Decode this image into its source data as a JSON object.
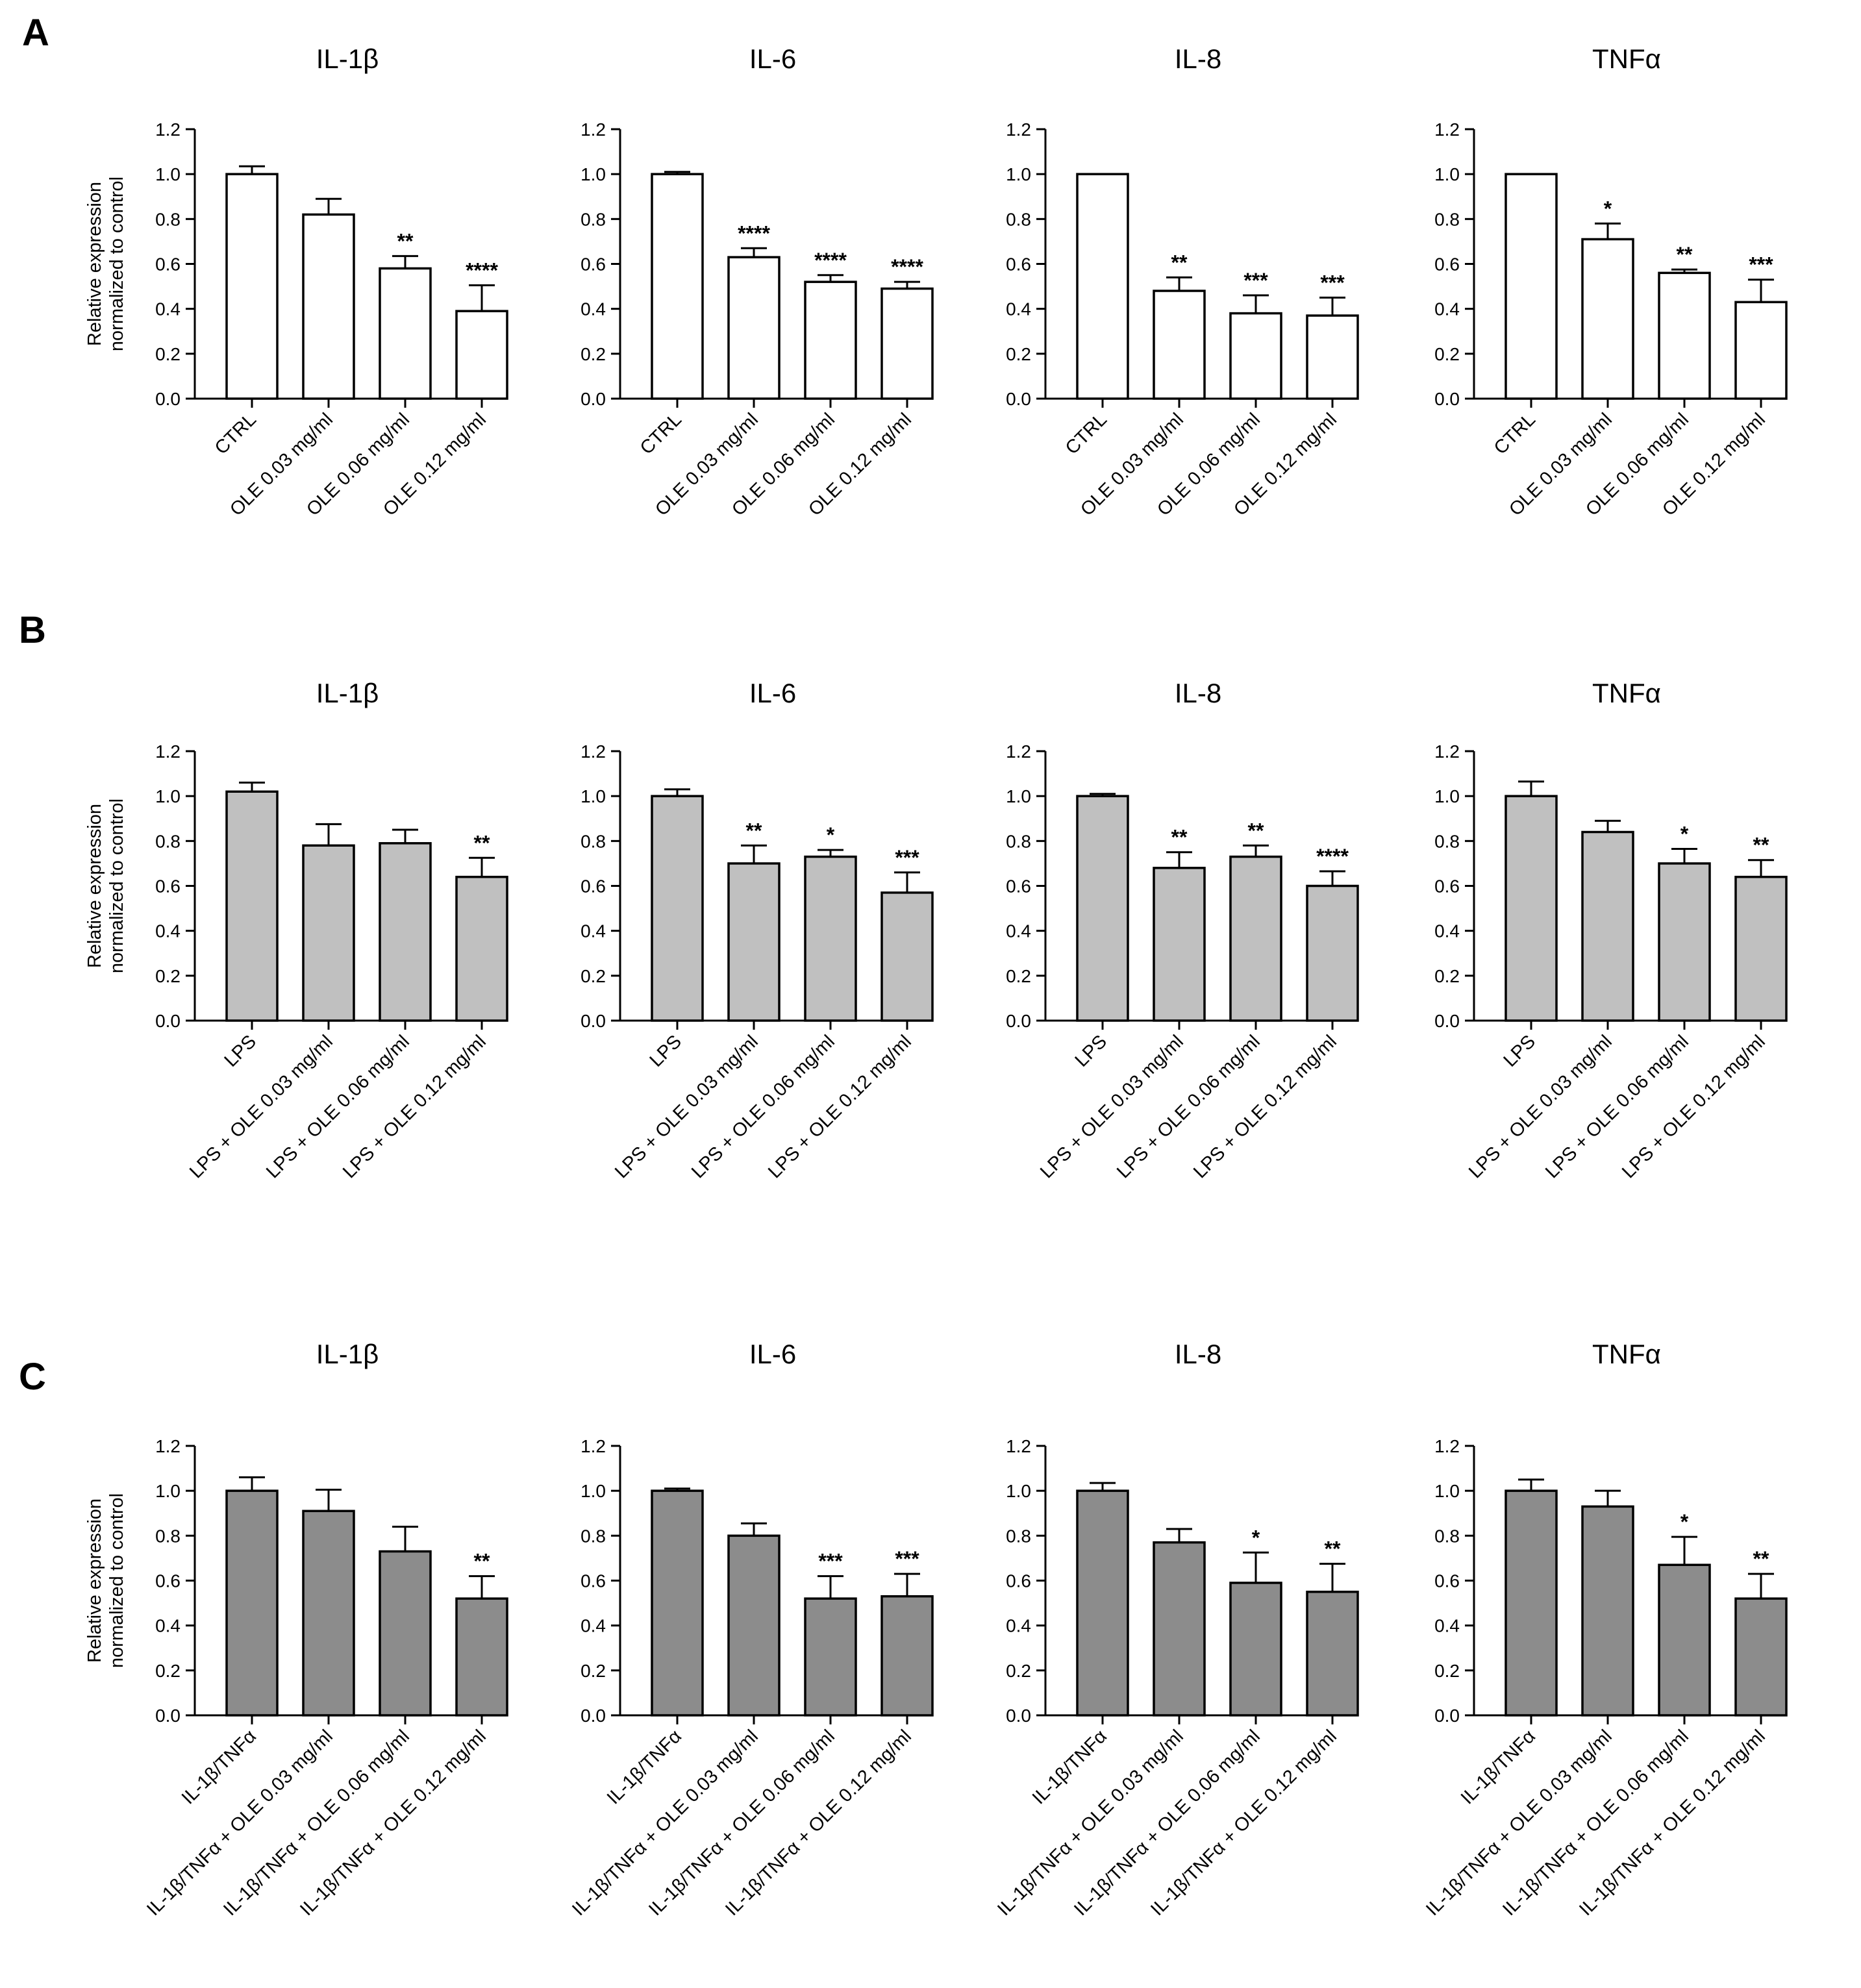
{
  "figure": {
    "y_axis_label_lines": [
      "Relative expression",
      "normalized to control"
    ],
    "styles": {
      "A": {
        "fill": "#ffffff",
        "stroke": "#000000"
      },
      "B": {
        "fill": "#c0c0c0",
        "stroke": "#000000"
      },
      "C": {
        "fill": "#8c8c8c",
        "stroke": "#000000"
      }
    }
  },
  "chart_data": [
    {
      "panel": "A",
      "type": "bar",
      "title": "IL-1β",
      "categories": [
        "CTRL",
        "OLE 0.03 mg/ml",
        "OLE 0.06 mg/ml",
        "OLE 0.12 mg/ml"
      ],
      "values": [
        1.0,
        0.82,
        0.58,
        0.39
      ],
      "errors": [
        0.035,
        0.07,
        0.055,
        0.115
      ],
      "significance": [
        "",
        "",
        "**",
        "****"
      ],
      "ylabel": "Relative expression normalized to control",
      "ylim": [
        0,
        1.2
      ],
      "yticks": [
        "0.0",
        "0.2",
        "0.4",
        "0.6",
        "0.8",
        "1.0",
        "1.2"
      ]
    },
    {
      "panel": "A",
      "type": "bar",
      "title": "IL-6",
      "categories": [
        "CTRL",
        "OLE 0.03 mg/ml",
        "OLE 0.06 mg/ml",
        "OLE 0.12 mg/ml"
      ],
      "values": [
        1.0,
        0.63,
        0.52,
        0.49
      ],
      "errors": [
        0.01,
        0.04,
        0.03,
        0.03
      ],
      "significance": [
        "",
        "****",
        "****",
        "****"
      ],
      "ylabel": "",
      "ylim": [
        0,
        1.2
      ],
      "yticks": [
        "0.0",
        "0.2",
        "0.4",
        "0.6",
        "0.8",
        "1.0",
        "1.2"
      ]
    },
    {
      "panel": "A",
      "type": "bar",
      "title": "IL-8",
      "categories": [
        "CTRL",
        "OLE 0.03 mg/ml",
        "OLE 0.06 mg/ml",
        "OLE 0.12 mg/ml"
      ],
      "values": [
        1.0,
        0.48,
        0.38,
        0.37
      ],
      "errors": [
        0.0,
        0.06,
        0.08,
        0.08
      ],
      "significance": [
        "",
        "**",
        "***",
        "***"
      ],
      "ylabel": "",
      "ylim": [
        0,
        1.2
      ],
      "yticks": [
        "0.0",
        "0.2",
        "0.4",
        "0.6",
        "0.8",
        "1.0",
        "1.2"
      ]
    },
    {
      "panel": "A",
      "type": "bar",
      "title": "TNFα",
      "categories": [
        "CTRL",
        "OLE 0.03 mg/ml",
        "OLE 0.06 mg/ml",
        "OLE 0.12 mg/ml"
      ],
      "values": [
        1.0,
        0.71,
        0.56,
        0.43
      ],
      "errors": [
        0.0,
        0.07,
        0.015,
        0.1
      ],
      "significance": [
        "",
        "*",
        "**",
        "***"
      ],
      "ylabel": "",
      "ylim": [
        0,
        1.2
      ],
      "yticks": [
        "0.0",
        "0.2",
        "0.4",
        "0.6",
        "0.8",
        "1.0",
        "1.2"
      ]
    },
    {
      "panel": "B",
      "type": "bar",
      "title": "IL-1β",
      "categories": [
        "LPS",
        "LPS + OLE 0.03 mg/ml",
        "LPS + OLE 0.06 mg/ml",
        "LPS + OLE 0.12 mg/ml"
      ],
      "values": [
        1.02,
        0.78,
        0.79,
        0.64
      ],
      "errors": [
        0.04,
        0.095,
        0.06,
        0.085
      ],
      "significance": [
        "",
        "",
        "",
        "**"
      ],
      "ylabel": "Relative expression normalized to control",
      "ylim": [
        0,
        1.2
      ],
      "yticks": [
        "0.0",
        "0.2",
        "0.4",
        "0.6",
        "0.8",
        "1.0",
        "1.2"
      ]
    },
    {
      "panel": "B",
      "type": "bar",
      "title": "IL-6",
      "categories": [
        "LPS",
        "LPS + OLE 0.03 mg/ml",
        "LPS + OLE 0.06 mg/ml",
        "LPS + OLE 0.12 mg/ml"
      ],
      "values": [
        1.0,
        0.7,
        0.73,
        0.57
      ],
      "errors": [
        0.03,
        0.08,
        0.03,
        0.09
      ],
      "significance": [
        "",
        "**",
        "*",
        "***"
      ],
      "ylabel": "",
      "ylim": [
        0,
        1.2
      ],
      "yticks": [
        "0.0",
        "0.2",
        "0.4",
        "0.6",
        "0.8",
        "1.0",
        "1.2"
      ]
    },
    {
      "panel": "B",
      "type": "bar",
      "title": "IL-8",
      "categories": [
        "LPS",
        "LPS + OLE 0.03 mg/ml",
        "LPS + OLE 0.06 mg/ml",
        "LPS + OLE 0.12 mg/ml"
      ],
      "values": [
        1.0,
        0.68,
        0.73,
        0.6
      ],
      "errors": [
        0.01,
        0.07,
        0.05,
        0.065
      ],
      "significance": [
        "",
        "**",
        "**",
        "****"
      ],
      "ylabel": "",
      "ylim": [
        0,
        1.2
      ],
      "yticks": [
        "0.0",
        "0.2",
        "0.4",
        "0.6",
        "0.8",
        "1.0",
        "1.2"
      ]
    },
    {
      "panel": "B",
      "type": "bar",
      "title": "TNFα",
      "categories": [
        "LPS",
        "LPS + OLE 0.03 mg/ml",
        "LPS + OLE 0.06 mg/ml",
        "LPS + OLE 0.12 mg/ml"
      ],
      "values": [
        1.0,
        0.84,
        0.7,
        0.64
      ],
      "errors": [
        0.065,
        0.05,
        0.065,
        0.075
      ],
      "significance": [
        "",
        "",
        "*",
        "**"
      ],
      "ylabel": "",
      "ylim": [
        0,
        1.2
      ],
      "yticks": [
        "0.0",
        "0.2",
        "0.4",
        "0.6",
        "0.8",
        "1.0",
        "1.2"
      ]
    },
    {
      "panel": "C",
      "type": "bar",
      "title": "IL-1β",
      "categories": [
        "IL-1β/TNFα",
        "IL-1β/TNFα  + OLE 0.03 mg/ml",
        "IL-1β/TNFα + OLE 0.06 mg/ml",
        "IL-1β/TNFα + OLE 0.12 mg/ml"
      ],
      "values": [
        1.0,
        0.91,
        0.73,
        0.52
      ],
      "errors": [
        0.06,
        0.095,
        0.11,
        0.1
      ],
      "significance": [
        "",
        "",
        "",
        "**"
      ],
      "ylabel": "Relative expression normalized to control",
      "ylim": [
        0,
        1.2
      ],
      "yticks": [
        "0.0",
        "0.2",
        "0.4",
        "0.6",
        "0.8",
        "1.0",
        "1.2"
      ]
    },
    {
      "panel": "C",
      "type": "bar",
      "title": "IL-6",
      "categories": [
        "IL-1β/TNFα",
        "IL-1β/TNFα  + OLE 0.03 mg/ml",
        "IL-1β/TNFα + OLE 0.06 mg/ml",
        "IL-1β/TNFα + OLE 0.12 mg/ml"
      ],
      "values": [
        1.0,
        0.8,
        0.52,
        0.53
      ],
      "errors": [
        0.01,
        0.055,
        0.1,
        0.1
      ],
      "significance": [
        "",
        "",
        "***",
        "***"
      ],
      "ylabel": "",
      "ylim": [
        0,
        1.2
      ],
      "yticks": [
        "0.0",
        "0.2",
        "0.4",
        "0.6",
        "0.8",
        "1.0",
        "1.2"
      ]
    },
    {
      "panel": "C",
      "type": "bar",
      "title": "IL-8",
      "categories": [
        "IL-1β/TNFα",
        "IL-1β/TNFα  + OLE 0.03 mg/ml",
        "IL-1β/TNFα + OLE 0.06 mg/ml",
        "IL-1β/TNFα + OLE 0.12 mg/ml"
      ],
      "values": [
        1.0,
        0.77,
        0.59,
        0.55
      ],
      "errors": [
        0.035,
        0.06,
        0.135,
        0.125
      ],
      "significance": [
        "",
        "",
        "*",
        "**"
      ],
      "ylabel": "",
      "ylim": [
        0,
        1.2
      ],
      "yticks": [
        "0.0",
        "0.2",
        "0.4",
        "0.6",
        "0.8",
        "1.0",
        "1.2"
      ]
    },
    {
      "panel": "C",
      "type": "bar",
      "title": "TNFα",
      "categories": [
        "IL-1β/TNFα",
        "IL-1β/TNFα  + OLE 0.03 mg/ml",
        "IL-1β/TNFα + OLE 0.06 mg/ml",
        "IL-1β/TNFα + OLE 0.12 mg/ml"
      ],
      "values": [
        1.0,
        0.93,
        0.67,
        0.52
      ],
      "errors": [
        0.05,
        0.07,
        0.125,
        0.11
      ],
      "significance": [
        "",
        "",
        "*",
        "**"
      ],
      "ylabel": "",
      "ylim": [
        0,
        1.2
      ],
      "yticks": [
        "0.0",
        "0.2",
        "0.4",
        "0.6",
        "0.8",
        "1.0",
        "1.2"
      ]
    }
  ]
}
